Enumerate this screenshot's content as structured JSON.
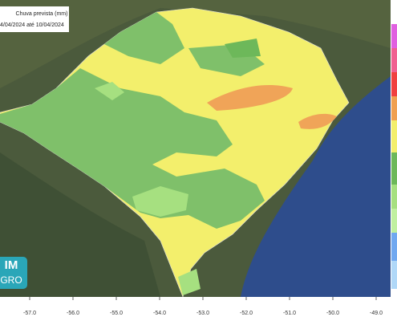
{
  "legend": {
    "title": "Chuva prevista (mm)",
    "period": "4/04/2024 até 10/04/2024"
  },
  "logo": {
    "line1": "IM",
    "line2": "GRO"
  },
  "longitude_ticks": [
    {
      "value": -57,
      "label": "-57.0"
    },
    {
      "value": -56,
      "label": "-56.0"
    },
    {
      "value": -55,
      "label": "-55.0"
    },
    {
      "value": -54,
      "label": "-54.0"
    },
    {
      "value": -53,
      "label": "-53.0"
    },
    {
      "value": -52,
      "label": "-52.0"
    },
    {
      "value": -51,
      "label": "-51.0"
    },
    {
      "value": -50,
      "label": "-50.0"
    },
    {
      "value": -49,
      "label": "-49.0"
    }
  ]
}
